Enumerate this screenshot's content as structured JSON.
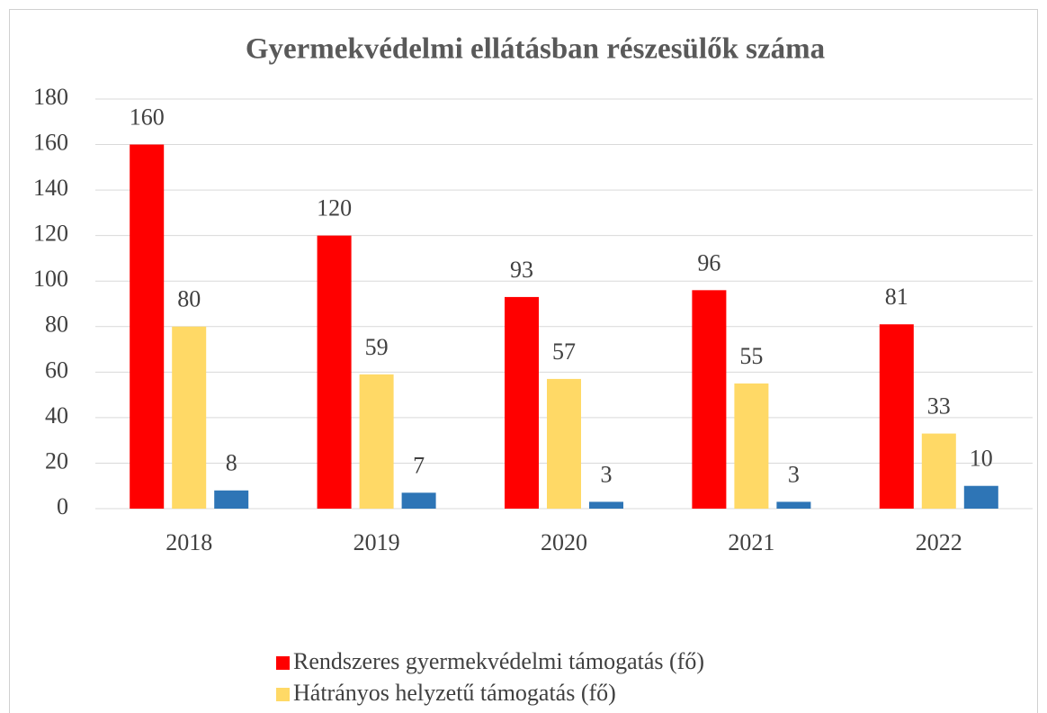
{
  "chart_data": {
    "type": "bar",
    "title": "Gyermekvédelmi ellátásban részesülők száma",
    "categories": [
      "2018",
      "2019",
      "2020",
      "2021",
      "2022"
    ],
    "series": [
      {
        "name": "Rendszeres gyermekvédelmi támogatás (fő)",
        "color": "#ff0000",
        "values": [
          160,
          120,
          93,
          96,
          81
        ]
      },
      {
        "name": "Hátrányos helyzetű támogatás (fő)",
        "color": "#ffd966",
        "values": [
          80,
          59,
          57,
          55,
          33
        ]
      },
      {
        "color": "#2e75b6",
        "values": [
          8,
          7,
          3,
          3,
          10
        ]
      }
    ],
    "ylim": [
      0,
      180
    ],
    "yticks": [
      0,
      20,
      40,
      60,
      80,
      100,
      120,
      140,
      160,
      180
    ],
    "grid": true
  }
}
